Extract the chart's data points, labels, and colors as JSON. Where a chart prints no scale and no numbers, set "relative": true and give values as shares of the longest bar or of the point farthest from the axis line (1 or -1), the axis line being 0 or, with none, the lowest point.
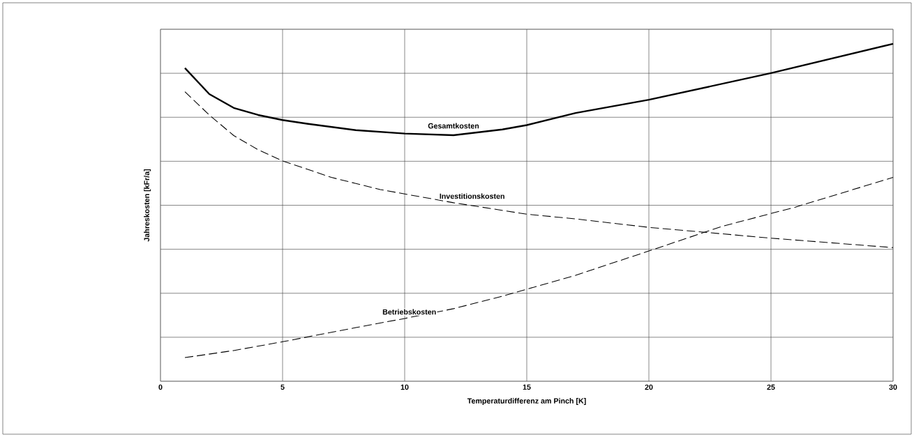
{
  "chart_data": {
    "type": "line",
    "relative": true,
    "xlabel": "Temperaturdifferenz am Pinch  [K]",
    "ylabel": "Jahreskosten [kFr/a]",
    "xlim": [
      0,
      30
    ],
    "xticks": [
      0,
      5,
      10,
      15,
      20,
      25,
      30
    ],
    "grid": true,
    "series": [
      {
        "name": "Gesamtkosten",
        "color": "#000000",
        "line_style": "solid",
        "x": [
          1,
          2,
          3,
          4,
          5,
          6,
          8,
          10,
          12,
          14,
          15,
          17,
          20,
          25,
          30
        ],
        "values": [
          0.928,
          0.851,
          0.81,
          0.789,
          0.774,
          0.763,
          0.744,
          0.734,
          0.729,
          0.746,
          0.759,
          0.795,
          0.834,
          0.913,
          1
        ]
      },
      {
        "name": "Investitionskosten",
        "color": "#000000",
        "line_style": "dashed",
        "x": [
          1,
          2,
          3,
          4,
          5,
          7,
          9,
          12,
          15,
          17,
          20,
          25,
          30
        ],
        "values": [
          0.858,
          0.789,
          0.728,
          0.686,
          0.653,
          0.604,
          0.568,
          0.529,
          0.495,
          0.481,
          0.456,
          0.424,
          0.396
        ]
      },
      {
        "name": "Betriebskosten",
        "color": "#000000",
        "line_style": "dashed",
        "x": [
          1,
          3,
          5,
          8,
          10,
          12,
          14,
          17,
          20,
          23,
          26,
          30
        ],
        "values": [
          0.07,
          0.091,
          0.117,
          0.159,
          0.186,
          0.215,
          0.252,
          0.314,
          0.386,
          0.459,
          0.516,
          0.604
        ]
      }
    ]
  }
}
